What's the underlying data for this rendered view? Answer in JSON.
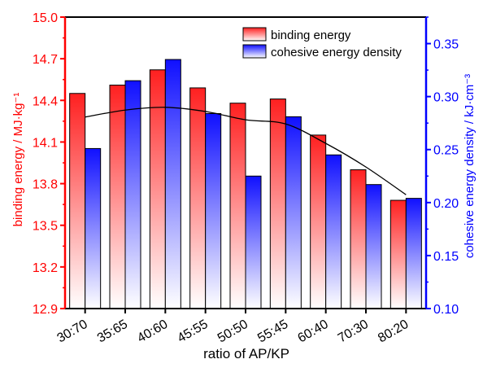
{
  "chart_data": {
    "type": "bar",
    "xlabel": "ratio of AP/KP",
    "ylabel_left": "binding energy / MJ·kg⁻¹",
    "ylabel_right": "cohesive energy density / kJ·cm⁻³",
    "categories": [
      "30:70",
      "35:65",
      "40:60",
      "45:55",
      "50:50",
      "55:45",
      "60:40",
      "70:30",
      "80:20"
    ],
    "ylim_left": [
      12.9,
      15.0
    ],
    "yticks_left": [
      "12.9",
      "13.2",
      "13.5",
      "13.8",
      "14.1",
      "14.4",
      "14.7",
      "15.0"
    ],
    "ylim_right": [
      0.1,
      0.375
    ],
    "yticks_right": [
      "0.10",
      "0.15",
      "0.20",
      "0.25",
      "0.30",
      "0.35"
    ],
    "series": [
      {
        "name": "binding energy",
        "axis": "left",
        "values": [
          14.45,
          14.51,
          14.62,
          14.49,
          14.38,
          14.41,
          14.15,
          13.9,
          13.68
        ]
      },
      {
        "name": "cohesive energy density",
        "axis": "right",
        "values": [
          0.251,
          0.315,
          0.335,
          0.284,
          0.225,
          0.281,
          0.245,
          0.217,
          0.204
        ]
      }
    ],
    "trend_line": {
      "axis": "left",
      "values": [
        14.28,
        14.33,
        14.35,
        14.32,
        14.26,
        14.23,
        14.09,
        13.92,
        13.72
      ]
    },
    "legend_position": "top-right",
    "colors": {
      "left_axis": "#ff0000",
      "right_axis": "#0000ff",
      "bar1": "#ff2a2a",
      "bar2": "#2020ff"
    }
  }
}
